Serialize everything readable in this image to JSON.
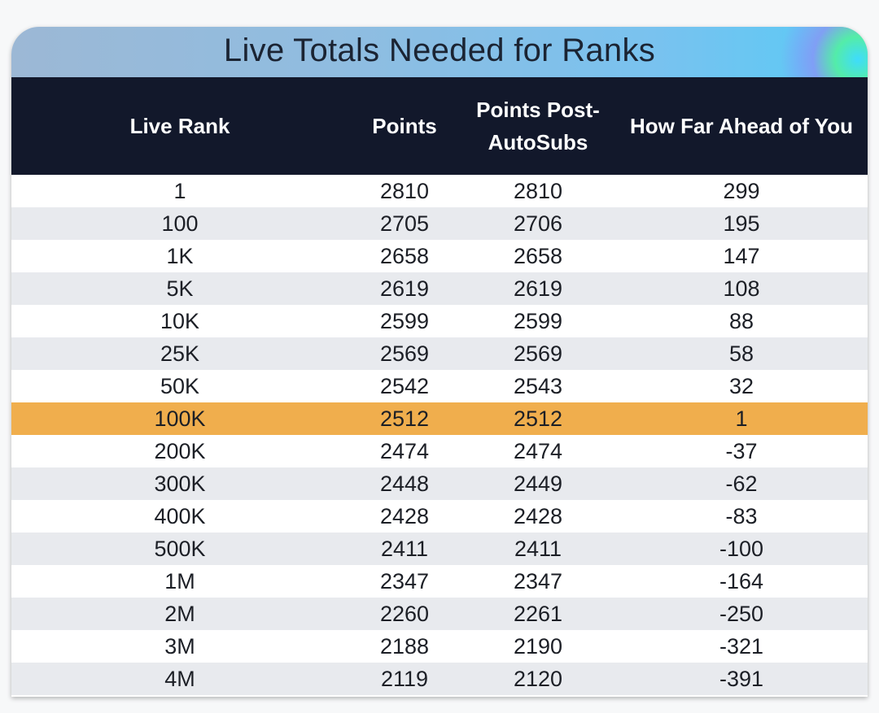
{
  "title": "Live Totals Needed for Ranks",
  "columns": [
    "Live Rank",
    "Points",
    "Points Post-AutoSubs",
    "How Far Ahead of You"
  ],
  "highlight_row_index": 7,
  "colors": {
    "header_bg": "#12182b",
    "highlight": "#f0ae4d",
    "alt_row": "#e8eaee"
  },
  "rows": [
    [
      "1",
      "2810",
      "2810",
      "299"
    ],
    [
      "100",
      "2705",
      "2706",
      "195"
    ],
    [
      "1K",
      "2658",
      "2658",
      "147"
    ],
    [
      "5K",
      "2619",
      "2619",
      "108"
    ],
    [
      "10K",
      "2599",
      "2599",
      "88"
    ],
    [
      "25K",
      "2569",
      "2569",
      "58"
    ],
    [
      "50K",
      "2542",
      "2543",
      "32"
    ],
    [
      "100K",
      "2512",
      "2512",
      "1"
    ],
    [
      "200K",
      "2474",
      "2474",
      "-37"
    ],
    [
      "300K",
      "2448",
      "2449",
      "-62"
    ],
    [
      "400K",
      "2428",
      "2428",
      "-83"
    ],
    [
      "500K",
      "2411",
      "2411",
      "-100"
    ],
    [
      "1M",
      "2347",
      "2347",
      "-164"
    ],
    [
      "2M",
      "2260",
      "2261",
      "-250"
    ],
    [
      "3M",
      "2188",
      "2190",
      "-321"
    ],
    [
      "4M",
      "2119",
      "2120",
      "-391"
    ]
  ]
}
